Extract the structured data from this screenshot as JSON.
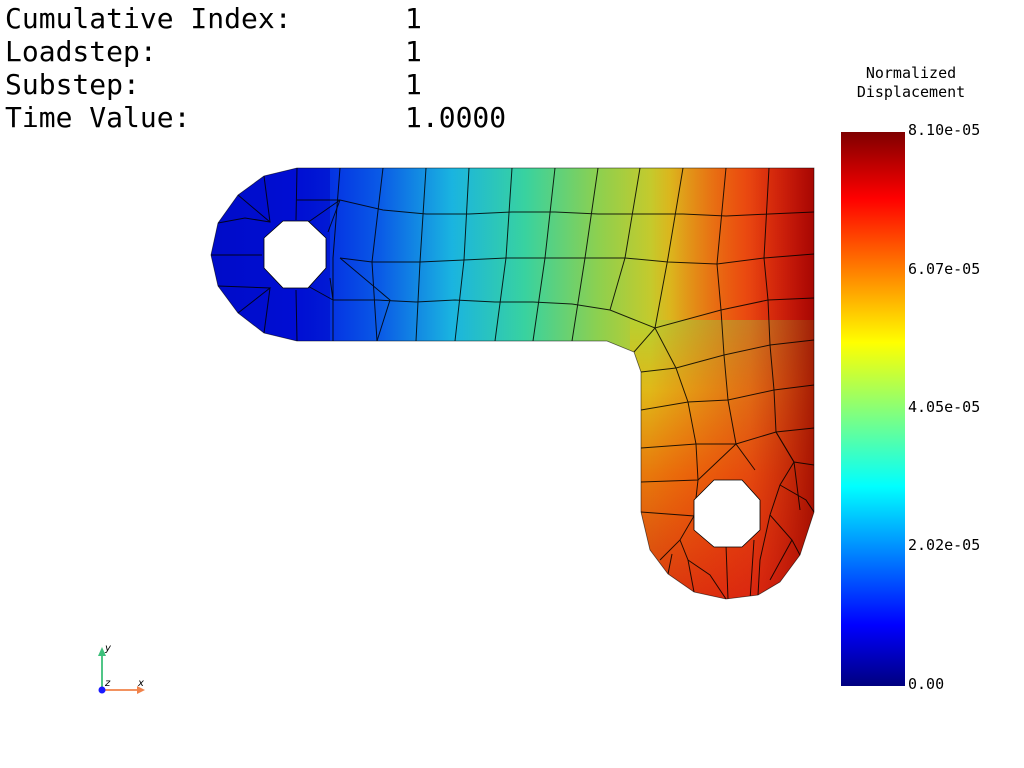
{
  "info": {
    "rows": [
      {
        "label": "Cumulative Index:",
        "value": "1"
      },
      {
        "label": "Loadstep:",
        "value": "1"
      },
      {
        "label": "Substep:",
        "value": "1"
      },
      {
        "label": "Time Value:",
        "value": "1.0000"
      }
    ]
  },
  "legend": {
    "title_line1": "Normalized",
    "title_line2": "Displacement",
    "ticks": [
      "8.10e-05",
      "6.07e-05",
      "4.05e-05",
      "2.02e-05",
      "0.00"
    ],
    "min_value": 0,
    "max_value": 8.1e-05,
    "colormap": [
      "#00007f",
      "#0000ff",
      "#00ffff",
      "#ffff00",
      "#ff0000",
      "#7f0000"
    ]
  },
  "triad": {
    "x_label": "x",
    "y_label": "y",
    "z_label": "z",
    "x_color": "#f0824a",
    "y_color": "#3cc07a",
    "z_color": "#1a1aff"
  },
  "model": {
    "description_colors": {
      "mesh_line": "#000000"
    }
  }
}
